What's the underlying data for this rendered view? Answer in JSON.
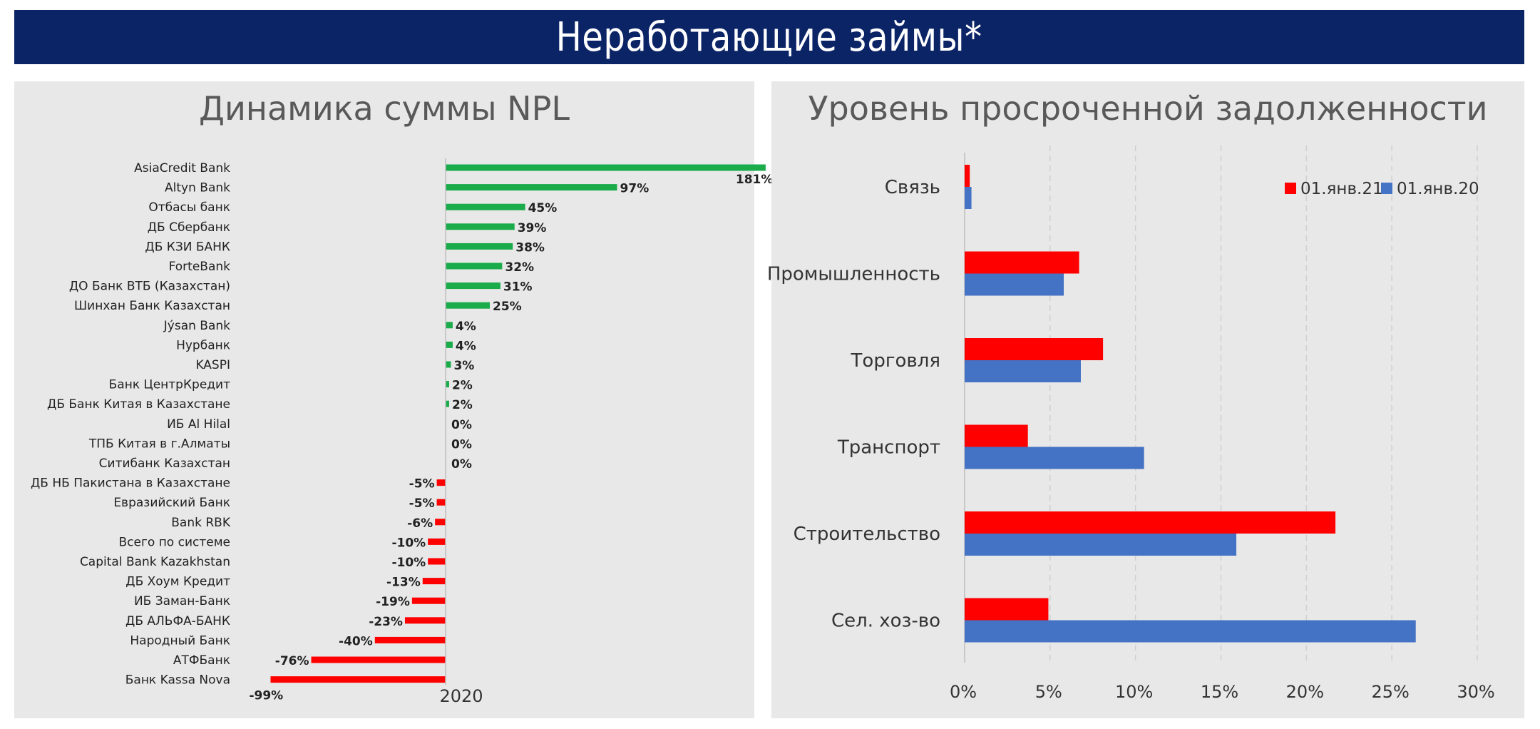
{
  "header": {
    "title": "Неработающие займы*"
  },
  "chart_data": [
    {
      "type": "bar",
      "orientation": "horizontal",
      "title": "Динамика суммы NPL",
      "xlabel": "2020",
      "positive_color": "#1aab4b",
      "negative_color": "#ff0000",
      "categories": [
        "AsiaCredit Bank",
        "Altyn Bank",
        "Отбасы банк",
        "ДБ Сбербанк",
        "ДБ КЗИ БАНК",
        "ForteBank",
        "ДО Банк ВТБ (Казахстан)",
        "Шинхан Банк Казахстан",
        "Jýsan Bank",
        "Нурбанк",
        "KASPI",
        "Банк ЦентрКредит",
        "ДБ Банк Китая в Казахстане",
        "ИБ Al Hilal",
        "ТПБ Китая в г.Алматы",
        "Ситибанк Казахстан",
        "ДБ НБ Пакистана в Казахстане",
        "Евразийский Банк",
        "Bank RBK",
        "Всего по системе",
        "Capital Bank Kazakhstan",
        "ДБ Хоум Кредит",
        "ИБ Заман-Банк",
        "ДБ АЛЬФА-БАНК",
        "Народный Банк",
        "АТФБанк",
        "Банк Kassa Nova"
      ],
      "values": [
        181,
        97,
        45,
        39,
        38,
        32,
        31,
        25,
        4,
        4,
        3,
        2,
        2,
        0,
        0,
        0,
        -5,
        -5,
        -6,
        -10,
        -10,
        -13,
        -19,
        -23,
        -40,
        -76,
        -99
      ],
      "labels": [
        "181%",
        "97%",
        "45%",
        "39%",
        "38%",
        "32%",
        "31%",
        "25%",
        "4%",
        "4%",
        "3%",
        "2%",
        "2%",
        "0%",
        "0%",
        "0%",
        "-5%",
        "-5%",
        "-6%",
        "-10%",
        "-10%",
        "-13%",
        "-19%",
        "-23%",
        "-40%",
        "-76%",
        "-99%"
      ]
    },
    {
      "type": "bar",
      "orientation": "horizontal",
      "title": "Уровень просроченной задолженности",
      "categories": [
        "Связь",
        "Промышленность",
        "Торговля",
        "Транспорт",
        "Строительство",
        "Сел. хоз-во"
      ],
      "xlim": [
        0,
        30
      ],
      "xticks": [
        "0%",
        "5%",
        "10%",
        "15%",
        "20%",
        "25%",
        "30%"
      ],
      "grid": "vertical dashed",
      "legend": "top-right",
      "series": [
        {
          "name": "01.янв.21",
          "color": "#ff0000",
          "values": [
            0.3,
            6.7,
            8.1,
            3.7,
            21.7,
            4.9
          ]
        },
        {
          "name": "01.янв.20",
          "color": "#4472c4",
          "values": [
            0.4,
            5.8,
            6.8,
            10.5,
            15.9,
            26.4
          ]
        }
      ]
    }
  ]
}
